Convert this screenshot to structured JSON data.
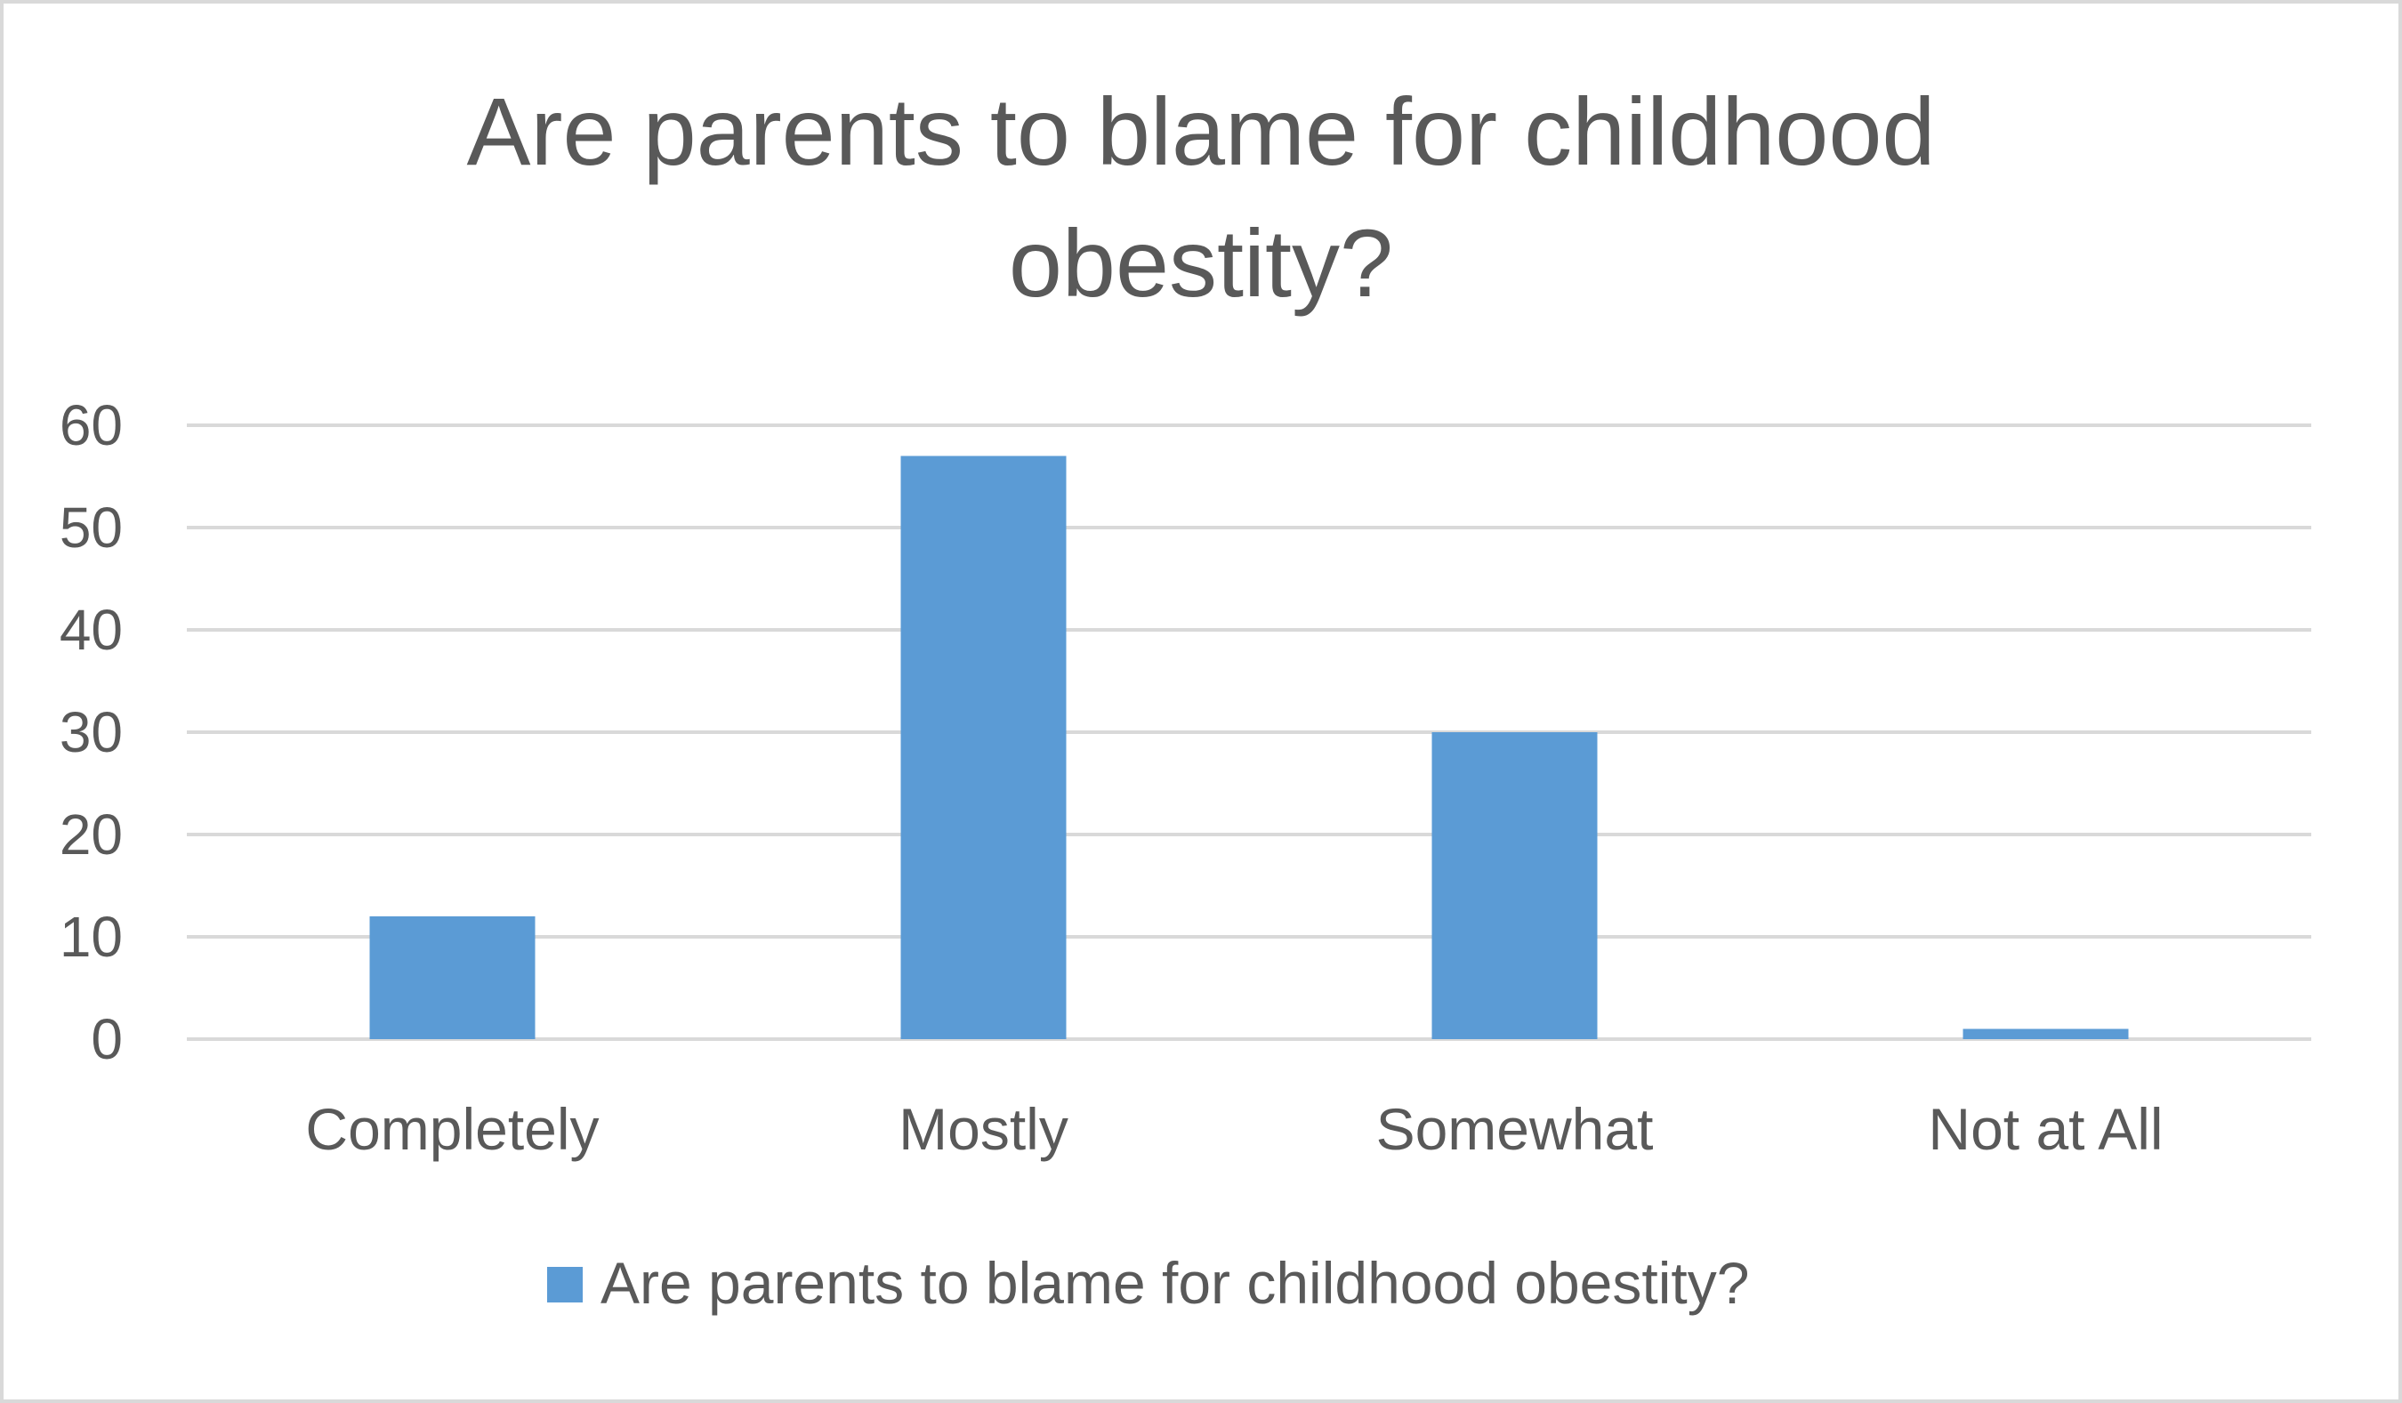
{
  "chart_data": {
    "type": "bar",
    "title_lines": [
      "Are parents to blame for childhood",
      "obestity?"
    ],
    "xlabel": "",
    "ylabel": "",
    "categories": [
      "Completely",
      "Mostly",
      "Somewhat",
      "Not at All"
    ],
    "series": [
      {
        "name": "Are parents to blame for childhood obestity?",
        "values": [
          12,
          57,
          30,
          1
        ],
        "color": "#5b9bd5"
      }
    ],
    "ylim": [
      0,
      60
    ],
    "yticks": [
      0,
      10,
      20,
      30,
      40,
      50,
      60
    ],
    "grid": true,
    "legend_position": "bottom",
    "gridline_color": "#d9d9d9",
    "text_color": "#595959"
  }
}
